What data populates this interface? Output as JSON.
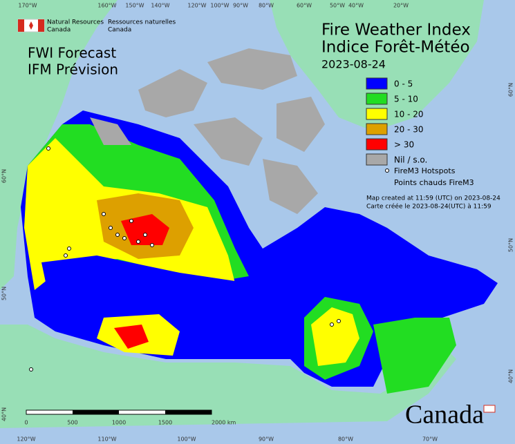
{
  "header": {
    "agency_en": "Natural Resources",
    "agency_en_2": "Canada",
    "agency_fr": "Ressources naturelles",
    "agency_fr_2": "Canada"
  },
  "title": {
    "line1": "Fire Weather Index",
    "line2": "Indice Forêt-Météo",
    "date": "2023-08-24"
  },
  "subtitle": {
    "line1": "FWI Forecast",
    "line2": "IFM Prévision"
  },
  "legend": {
    "items": [
      {
        "label": "0 - 5",
        "color": "#0000ff"
      },
      {
        "label": "5 - 10",
        "color": "#22dd22"
      },
      {
        "label": "10 - 20",
        "color": "#ffff00"
      },
      {
        "label": "20 - 30",
        "color": "#dda000"
      },
      {
        "label": "> 30",
        "color": "#ff0000"
      },
      {
        "label": "Nil / s.o.",
        "color": "#a8a8a8"
      }
    ],
    "hotspots_en": "FireM3 Hotspots",
    "hotspots_fr": "Points chauds FireM3"
  },
  "notes": {
    "created_en": "Map created at 11:59 (UTC) on 2023-08-24",
    "created_fr": "Carte créée le 2023-08-24(UTC) à 11:59"
  },
  "graticule": {
    "top": [
      "170°W",
      "160°W",
      "150°W",
      "140°W",
      "120°W",
      "100°W",
      "90°W",
      "80°W",
      "60°W",
      "50°W",
      "40°W",
      "20°W"
    ],
    "bottom": [
      "120°W",
      "110°W",
      "100°W",
      "90°W",
      "80°W",
      "70°W"
    ],
    "left": [
      "60°N",
      "50°N",
      "40°N"
    ],
    "right": [
      "60°N",
      "50°N",
      "40°N"
    ]
  },
  "scale": {
    "labels": [
      "0",
      "500",
      "1000",
      "1500",
      "2000 km"
    ]
  },
  "wordmark": "Canada"
}
